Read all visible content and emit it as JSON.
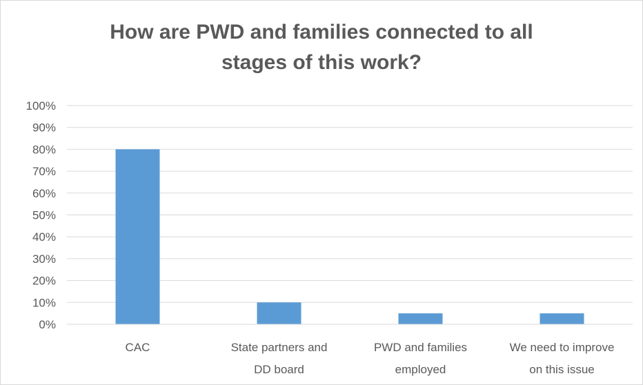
{
  "chart_data": {
    "type": "bar",
    "title": "How are PWD and families connected to all stages of this work?",
    "title_lines": [
      "How are PWD and families connected to all",
      "stages of this work?"
    ],
    "categories": [
      "CAC",
      "State partners and DD board",
      "PWD and families employed",
      "We need to improve on this issue"
    ],
    "category_label_lines": [
      [
        "CAC"
      ],
      [
        "State partners and",
        "DD board"
      ],
      [
        "PWD and families",
        "employed"
      ],
      [
        "We need to improve",
        "on this issue"
      ]
    ],
    "values": [
      80,
      10,
      5,
      5
    ],
    "ylim": [
      0,
      100
    ],
    "y_ticks": [
      "0%",
      "10%",
      "20%",
      "30%",
      "40%",
      "50%",
      "60%",
      "70%",
      "80%",
      "90%",
      "100%"
    ],
    "y_tick_values": [
      0,
      10,
      20,
      30,
      40,
      50,
      60,
      70,
      80,
      90,
      100
    ],
    "xlabel": "",
    "ylabel": "",
    "grid": true,
    "legend": "none",
    "colors": {
      "bar": "#5b9bd5",
      "grid": "#d9d9d9",
      "text": "#595959",
      "border": "#d9d9d9"
    }
  }
}
